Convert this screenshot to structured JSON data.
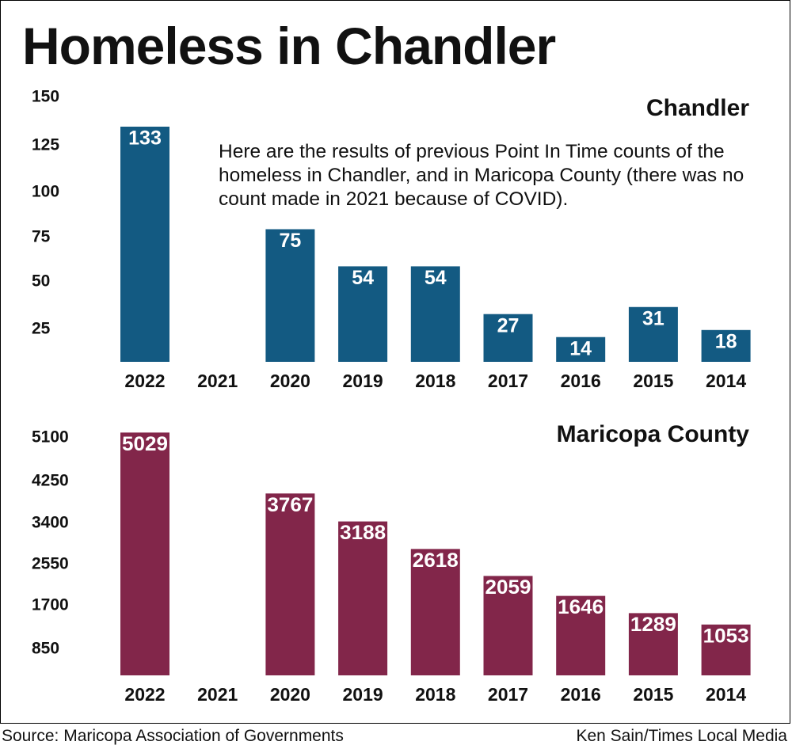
{
  "title": "Homeless in Chandler",
  "description": "Here are the results of previous Point In Time counts of the homeless in Chandler, and in Maricopa County (there was no count made in 2021 because of COVID).",
  "footer": {
    "source": "Source: Maricopa Association of Governments",
    "credit": "Ken Sain/Times Local Media"
  },
  "colors": {
    "chandler": "#135a82",
    "maricopa": "#82264a",
    "text": "#111111"
  },
  "chart_data": [
    {
      "type": "bar",
      "title": "Chandler",
      "categories": [
        "2022",
        "2021",
        "2020",
        "2019",
        "2018",
        "2017",
        "2016",
        "2015",
        "2014"
      ],
      "values": [
        133,
        null,
        75,
        54,
        54,
        27,
        14,
        31,
        18
      ],
      "value_labels": [
        "133",
        "",
        "75",
        "54",
        "54",
        "27",
        "14",
        "31",
        "18"
      ],
      "yticks": [
        "150",
        "125",
        "100",
        "75",
        "50",
        "25"
      ],
      "ytick_values": [
        150,
        125,
        100,
        75,
        50,
        25
      ],
      "ylim": [
        0,
        150
      ],
      "xlabel": "",
      "ylabel": "",
      "grid": false
    },
    {
      "type": "bar",
      "title": "Maricopa County",
      "categories": [
        "2022",
        "2021",
        "2020",
        "2019",
        "2018",
        "2017",
        "2016",
        "2015",
        "2014"
      ],
      "values": [
        5029,
        null,
        3767,
        3188,
        2618,
        2059,
        1646,
        1289,
        1053
      ],
      "value_labels": [
        "5029",
        "",
        "3767",
        "3188",
        "2618",
        "2059",
        "1646",
        "1289",
        "1053"
      ],
      "yticks": [
        "5100",
        "4250",
        "3400",
        "2550",
        "1700",
        "850"
      ],
      "ytick_values": [
        5100,
        4250,
        3400,
        2550,
        1700,
        850
      ],
      "ylim": [
        0,
        5100
      ],
      "xlabel": "",
      "ylabel": "",
      "grid": false
    }
  ]
}
